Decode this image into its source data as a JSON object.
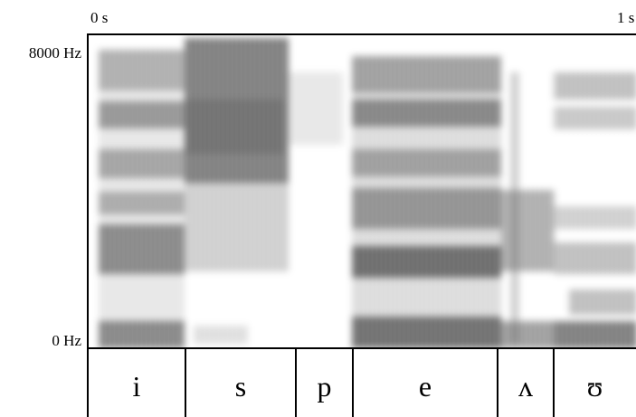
{
  "time_axis": {
    "start": "0 s",
    "end": "1 s"
  },
  "frequency_axis": {
    "top": "8000 Hz",
    "bottom": "0 Hz"
  },
  "segments": [
    "i",
    "s",
    "p",
    "e",
    "ʌ",
    "ʊ"
  ]
}
